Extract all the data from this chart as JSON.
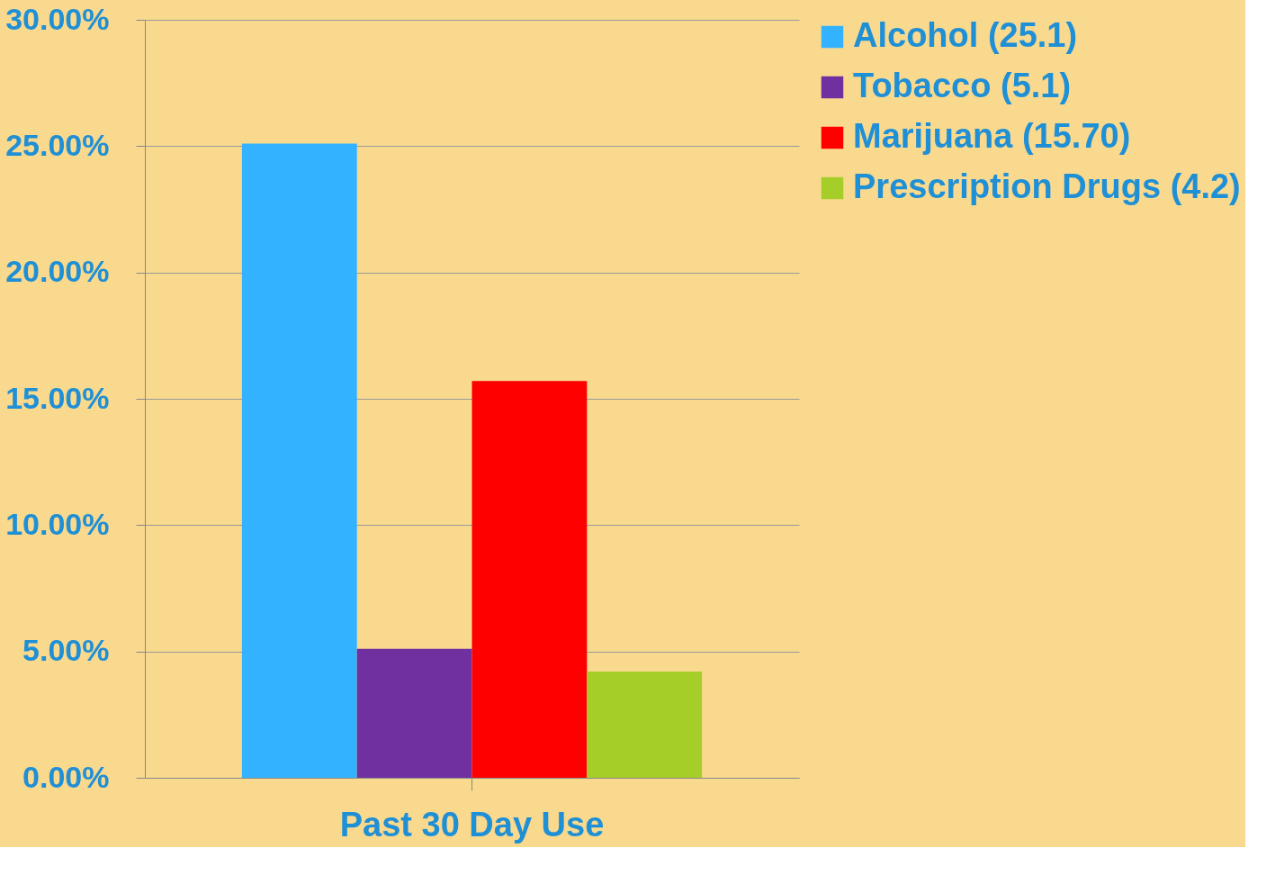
{
  "chart_data": {
    "type": "bar",
    "categories": [
      "Past 30 Day Use"
    ],
    "series": [
      {
        "name": "Alcohol (25.1)",
        "color": "#33b3ff",
        "values": [
          25.1
        ]
      },
      {
        "name": "Tobacco (5.1)",
        "color": "#7030a0",
        "values": [
          5.1
        ]
      },
      {
        "name": "Marijuana (15.70)",
        "color": "#ff0000",
        "values": [
          15.7
        ]
      },
      {
        "name": "Prescription Drugs (4.2)",
        "color": "#a6ce29",
        "values": [
          4.2
        ]
      }
    ],
    "ylim": [
      0,
      30
    ],
    "yticks": [
      {
        "value": 0,
        "label": "0.00%"
      },
      {
        "value": 5,
        "label": "5.00%"
      },
      {
        "value": 10,
        "label": "10.00%"
      },
      {
        "value": 15,
        "label": "15.00%"
      },
      {
        "value": 20,
        "label": "20.00%"
      },
      {
        "value": 25,
        "label": "25.00%"
      },
      {
        "value": 30,
        "label": "30.00%"
      }
    ],
    "grid": "y",
    "legend": "right"
  }
}
